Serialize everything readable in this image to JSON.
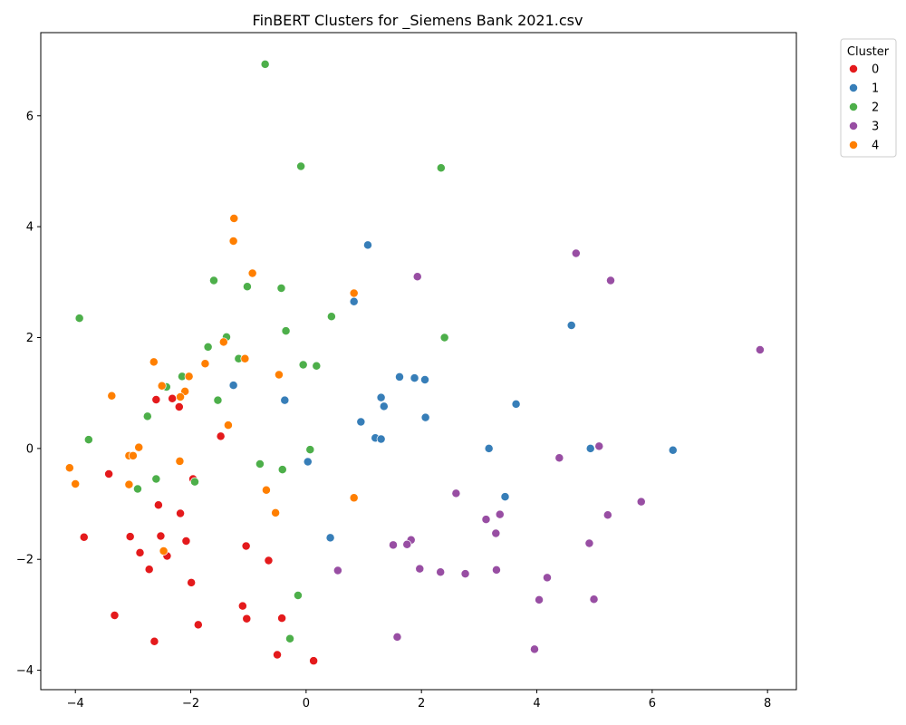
{
  "chart_data": {
    "type": "scatter",
    "title": "FinBERT Clusters for _Siemens Bank 2021.csv",
    "xlabel": "",
    "ylabel": "",
    "xlim": [
      -4.6,
      8.5
    ],
    "ylim": [
      -4.35,
      7.5
    ],
    "xticks": [
      -4,
      -2,
      0,
      2,
      4,
      6,
      8
    ],
    "yticks": [
      -4,
      -2,
      0,
      2,
      4,
      6
    ],
    "grid": false,
    "legend": {
      "title": "Cluster",
      "placement": "outside-top-right"
    },
    "series": [
      {
        "name": "0",
        "color": "#e41a1c",
        "points": [
          [
            -2.6,
            0.88
          ],
          [
            -2.32,
            0.9
          ],
          [
            -2.2,
            0.75
          ],
          [
            -1.48,
            0.22
          ],
          [
            -3.42,
            -0.46
          ],
          [
            -1.96,
            -0.55
          ],
          [
            -2.56,
            -1.02
          ],
          [
            -2.18,
            -1.17
          ],
          [
            -3.85,
            -1.6
          ],
          [
            -3.05,
            -1.59
          ],
          [
            -2.52,
            -1.58
          ],
          [
            -2.08,
            -1.67
          ],
          [
            -1.04,
            -1.76
          ],
          [
            -2.88,
            -1.88
          ],
          [
            -2.41,
            -1.94
          ],
          [
            -0.65,
            -2.02
          ],
          [
            -2.72,
            -2.18
          ],
          [
            -1.99,
            -2.42
          ],
          [
            -1.1,
            -2.84
          ],
          [
            -3.32,
            -3.01
          ],
          [
            -1.03,
            -3.07
          ],
          [
            -0.42,
            -3.06
          ],
          [
            -1.87,
            -3.18
          ],
          [
            -2.63,
            -3.48
          ],
          [
            -0.5,
            -3.72
          ],
          [
            0.13,
            -3.83
          ]
        ]
      },
      {
        "name": "1",
        "color": "#377eb8",
        "points": [
          [
            1.07,
            3.67
          ],
          [
            0.83,
            2.65
          ],
          [
            4.6,
            2.22
          ],
          [
            1.62,
            1.29
          ],
          [
            1.88,
            1.27
          ],
          [
            2.06,
            1.24
          ],
          [
            -1.26,
            1.14
          ],
          [
            -0.37,
            0.87
          ],
          [
            1.3,
            0.92
          ],
          [
            1.35,
            0.76
          ],
          [
            3.64,
            0.8
          ],
          [
            2.07,
            0.56
          ],
          [
            0.95,
            0.48
          ],
          [
            1.2,
            0.19
          ],
          [
            1.3,
            0.17
          ],
          [
            3.17,
            0.0
          ],
          [
            4.93,
            0.0
          ],
          [
            6.36,
            -0.03
          ],
          [
            0.03,
            -0.24
          ],
          [
            3.45,
            -0.87
          ],
          [
            0.42,
            -1.61
          ]
        ]
      },
      {
        "name": "2",
        "color": "#4daf4a",
        "points": [
          [
            -0.71,
            6.93
          ],
          [
            -0.09,
            5.09
          ],
          [
            2.34,
            5.06
          ],
          [
            -3.93,
            2.35
          ],
          [
            -1.6,
            3.03
          ],
          [
            -1.02,
            2.92
          ],
          [
            -0.43,
            2.89
          ],
          [
            0.44,
            2.38
          ],
          [
            -0.35,
            2.12
          ],
          [
            2.4,
            2.0
          ],
          [
            -1.38,
            2.01
          ],
          [
            -1.7,
            1.83
          ],
          [
            -1.17,
            1.62
          ],
          [
            -0.05,
            1.51
          ],
          [
            0.18,
            1.49
          ],
          [
            -2.15,
            1.3
          ],
          [
            -2.42,
            1.11
          ],
          [
            -1.53,
            0.87
          ],
          [
            -2.75,
            0.58
          ],
          [
            -3.77,
            0.16
          ],
          [
            0.07,
            -0.02
          ],
          [
            -0.8,
            -0.28
          ],
          [
            -0.41,
            -0.38
          ],
          [
            -2.6,
            -0.55
          ],
          [
            -1.93,
            -0.6
          ],
          [
            -2.92,
            -0.73
          ],
          [
            -0.14,
            -2.65
          ],
          [
            -0.28,
            -3.43
          ]
        ]
      },
      {
        "name": "3",
        "color": "#984ea3",
        "points": [
          [
            4.68,
            3.52
          ],
          [
            1.93,
            3.1
          ],
          [
            5.28,
            3.03
          ],
          [
            7.87,
            1.78
          ],
          [
            5.08,
            0.04
          ],
          [
            4.39,
            -0.17
          ],
          [
            2.6,
            -0.81
          ],
          [
            5.81,
            -0.96
          ],
          [
            3.36,
            -1.19
          ],
          [
            5.23,
            -1.2
          ],
          [
            3.12,
            -1.28
          ],
          [
            3.29,
            -1.53
          ],
          [
            1.82,
            -1.65
          ],
          [
            1.51,
            -1.74
          ],
          [
            1.75,
            -1.73
          ],
          [
            4.91,
            -1.71
          ],
          [
            0.55,
            -2.2
          ],
          [
            1.97,
            -2.17
          ],
          [
            2.33,
            -2.23
          ],
          [
            2.76,
            -2.26
          ],
          [
            3.3,
            -2.19
          ],
          [
            4.18,
            -2.33
          ],
          [
            4.04,
            -2.73
          ],
          [
            4.99,
            -2.72
          ],
          [
            1.58,
            -3.4
          ],
          [
            3.96,
            -3.62
          ]
        ]
      },
      {
        "name": "4",
        "color": "#ff7f00",
        "points": [
          [
            -1.25,
            4.15
          ],
          [
            -1.26,
            3.74
          ],
          [
            -0.93,
            3.16
          ],
          [
            0.83,
            2.8
          ],
          [
            -1.43,
            1.92
          ],
          [
            -1.06,
            1.62
          ],
          [
            -2.64,
            1.56
          ],
          [
            -1.75,
            1.53
          ],
          [
            -0.47,
            1.33
          ],
          [
            -2.03,
            1.3
          ],
          [
            -2.5,
            1.13
          ],
          [
            -2.1,
            1.03
          ],
          [
            -2.18,
            0.93
          ],
          [
            -3.37,
            0.95
          ],
          [
            -1.35,
            0.42
          ],
          [
            -2.9,
            0.02
          ],
          [
            -3.07,
            -0.13
          ],
          [
            -3.0,
            -0.13
          ],
          [
            -4.1,
            -0.35
          ],
          [
            -2.19,
            -0.23
          ],
          [
            -4.0,
            -0.64
          ],
          [
            -3.07,
            -0.65
          ],
          [
            -0.69,
            -0.75
          ],
          [
            0.83,
            -0.89
          ],
          [
            -0.53,
            -1.16
          ],
          [
            -2.47,
            -1.85
          ]
        ]
      }
    ]
  }
}
